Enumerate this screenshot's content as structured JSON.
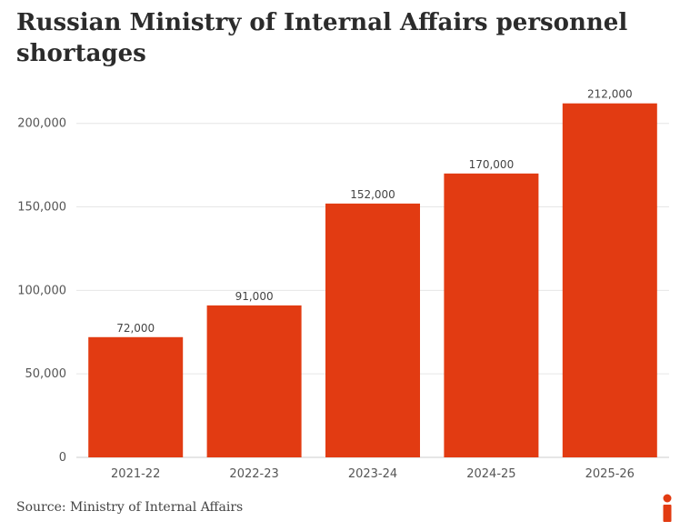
{
  "title": "Russian Ministry of Internal Affairs personnel shortages",
  "source": "Source: Ministry of Internal Affairs",
  "colors": {
    "bar": "#e23b12",
    "grid": "#e6e6e6",
    "text": "#2b2b2b",
    "logo": "#e23b12"
  },
  "chart_data": {
    "type": "bar",
    "title": "Russian Ministry of Internal Affairs personnel shortages",
    "categories": [
      "2021-22",
      "2022-23",
      "2023-24",
      "2024-25",
      "2025-26"
    ],
    "values": [
      72000,
      91000,
      152000,
      170000,
      212000
    ],
    "value_labels": [
      "72,000",
      "91,000",
      "152,000",
      "170,000",
      "212,000"
    ],
    "ylim": [
      0,
      220000
    ],
    "yticks": [
      0,
      50000,
      100000,
      150000,
      200000
    ],
    "ytick_labels": [
      "0",
      "50,000",
      "100,000",
      "150,000",
      "200,000"
    ],
    "xlabel": "",
    "ylabel": "",
    "grid": true
  }
}
